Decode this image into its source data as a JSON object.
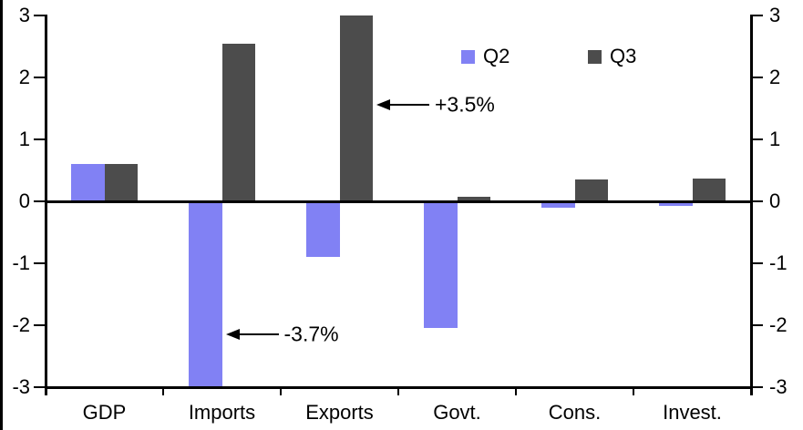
{
  "chart_data": {
    "type": "bar",
    "title": "",
    "xlabel": "",
    "ylabel": "",
    "categories": [
      "GDP",
      "Imports",
      "Exports",
      "Govt.",
      "Cons.",
      "Invest."
    ],
    "series": [
      {
        "name": "Q2",
        "color": "#8181F4",
        "values": [
          0.6,
          -3.7,
          -0.9,
          -2.05,
          -0.1,
          -0.07
        ]
      },
      {
        "name": "Q3",
        "color": "#4C4C4C",
        "values": [
          0.6,
          2.55,
          3.5,
          0.07,
          0.35,
          0.37
        ]
      }
    ],
    "ylim": [
      -3,
      3
    ],
    "yticks": [
      3,
      2,
      1,
      0,
      -1,
      -2,
      -3
    ],
    "dual_y_axis": true,
    "grid": false,
    "legend_position": "top-inside",
    "clip_bars_to_ylim": true,
    "annotations": [
      {
        "text": "+3.5%",
        "category": "Exports",
        "series": "Q3",
        "y": 1.56
      },
      {
        "text": "-3.7%",
        "category": "Imports",
        "series": "Q2",
        "y": -2.15
      }
    ]
  }
}
